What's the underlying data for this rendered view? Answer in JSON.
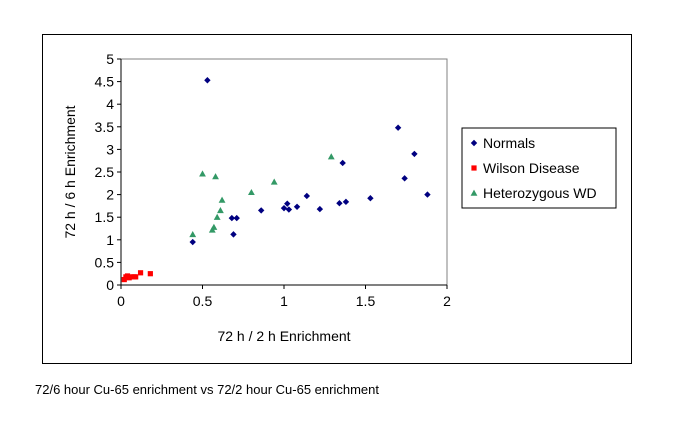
{
  "caption": "72/6 hour Cu-65 enrichment vs 72/2 hour Cu-65 enrichment",
  "chart_data": {
    "type": "scatter",
    "title": "",
    "xlabel": "72 h / 2 h Enrichment",
    "ylabel": "72 h / 6 h Enrichment",
    "xlim": [
      0,
      2
    ],
    "ylim": [
      0,
      5
    ],
    "xticks": [
      "0",
      "0.5",
      "1",
      "1.5",
      "2"
    ],
    "yticks": [
      "0",
      "0.5",
      "1",
      "1.5",
      "2",
      "2.5",
      "3",
      "3.5",
      "4",
      "4.5",
      "5"
    ],
    "grid": false,
    "legend_position": "right",
    "series": [
      {
        "name": "Normals",
        "color": "#000080",
        "marker": "diamond",
        "points": [
          [
            0.44,
            0.95
          ],
          [
            0.53,
            4.53
          ],
          [
            0.68,
            1.48
          ],
          [
            0.69,
            1.12
          ],
          [
            0.71,
            1.48
          ],
          [
            0.86,
            1.65
          ],
          [
            1.0,
            1.7
          ],
          [
            1.02,
            1.8
          ],
          [
            1.03,
            1.67
          ],
          [
            1.08,
            1.73
          ],
          [
            1.14,
            1.97
          ],
          [
            1.22,
            1.68
          ],
          [
            1.34,
            1.81
          ],
          [
            1.36,
            2.7
          ],
          [
            1.38,
            1.84
          ],
          [
            1.53,
            1.92
          ],
          [
            1.7,
            3.48
          ],
          [
            1.74,
            2.36
          ],
          [
            1.8,
            2.9
          ],
          [
            1.88,
            2.0
          ]
        ]
      },
      {
        "name": "Wilson Disease",
        "color": "#ff0000",
        "marker": "square",
        "points": [
          [
            0.02,
            0.12
          ],
          [
            0.03,
            0.18
          ],
          [
            0.04,
            0.2
          ],
          [
            0.05,
            0.16
          ],
          [
            0.06,
            0.18
          ],
          [
            0.08,
            0.18
          ],
          [
            0.09,
            0.18
          ],
          [
            0.12,
            0.27
          ],
          [
            0.18,
            0.25
          ]
        ]
      },
      {
        "name": "Heterozygous WD",
        "color": "#339966",
        "marker": "triangle",
        "points": [
          [
            0.44,
            1.12
          ],
          [
            0.5,
            2.46
          ],
          [
            0.56,
            1.22
          ],
          [
            0.57,
            1.28
          ],
          [
            0.58,
            2.4
          ],
          [
            0.59,
            1.5
          ],
          [
            0.61,
            1.65
          ],
          [
            0.62,
            1.88
          ],
          [
            0.8,
            2.05
          ],
          [
            0.94,
            2.28
          ],
          [
            1.29,
            2.84
          ]
        ]
      }
    ]
  }
}
